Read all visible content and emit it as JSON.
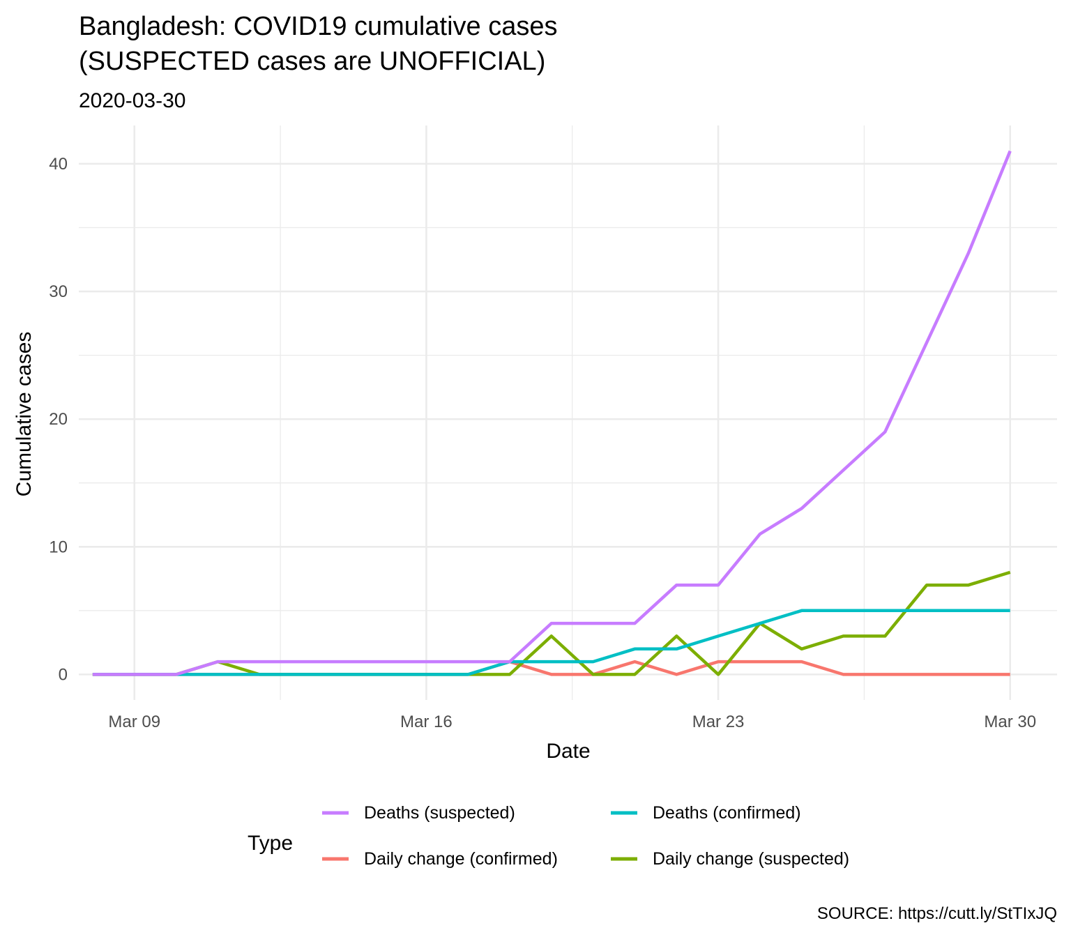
{
  "chart_data": {
    "type": "line",
    "title": "Bangladesh: COVID19 cumulative cases\n(SUSPECTED cases are UNOFFICIAL)",
    "title_lines": [
      "Bangladesh: COVID19 cumulative cases",
      "(SUSPECTED cases are UNOFFICIAL)"
    ],
    "subtitle": "2020-03-30",
    "xlabel": "Date",
    "ylabel": "Cumulative cases",
    "caption": "SOURCE: https://cutt.ly/StTIxJQ",
    "legend_title": "Type",
    "legend_position": "bottom",
    "grid": true,
    "xlim": [
      "2020-03-07T16:00",
      "2020-03-31T03:00"
    ],
    "ylim": [
      -2,
      43
    ],
    "x_ticks": [
      {
        "value": "2020-03-09",
        "label": "Mar 09"
      },
      {
        "value": "2020-03-16",
        "label": "Mar 16"
      },
      {
        "value": "2020-03-23",
        "label": "Mar 23"
      },
      {
        "value": "2020-03-30",
        "label": "Mar 30"
      }
    ],
    "x_minor_ticks": [
      "2020-03-12T12:00",
      "2020-03-19T12:00",
      "2020-03-26T12:00"
    ],
    "y_ticks": [
      0,
      10,
      20,
      30,
      40
    ],
    "y_minor_ticks": [
      5,
      15,
      25,
      35
    ],
    "x": [
      "2020-03-08",
      "2020-03-09",
      "2020-03-10",
      "2020-03-11",
      "2020-03-12",
      "2020-03-13",
      "2020-03-14",
      "2020-03-15",
      "2020-03-16",
      "2020-03-17",
      "2020-03-18",
      "2020-03-19",
      "2020-03-20",
      "2020-03-21",
      "2020-03-22",
      "2020-03-23",
      "2020-03-24",
      "2020-03-25",
      "2020-03-26",
      "2020-03-27",
      "2020-03-28",
      "2020-03-29",
      "2020-03-30"
    ],
    "series": [
      {
        "name": "Daily change (confirmed)",
        "color": "#F8766D",
        "values": [
          0,
          0,
          0,
          0,
          0,
          0,
          0,
          0,
          0,
          0,
          1,
          0,
          0,
          1,
          0,
          1,
          1,
          1,
          0,
          0,
          0,
          0,
          0
        ]
      },
      {
        "name": "Daily change (suspected)",
        "color": "#7CAE00",
        "values": [
          0,
          0,
          0,
          1,
          0,
          0,
          0,
          0,
          0,
          0,
          0,
          3,
          0,
          0,
          3,
          0,
          4,
          2,
          3,
          3,
          7,
          7,
          8
        ]
      },
      {
        "name": "Deaths (confirmed)",
        "color": "#00BFC4",
        "values": [
          0,
          0,
          0,
          0,
          0,
          0,
          0,
          0,
          0,
          0,
          1,
          1,
          1,
          2,
          2,
          3,
          4,
          5,
          5,
          5,
          5,
          5,
          5
        ]
      },
      {
        "name": "Deaths (suspected)",
        "color": "#C77CFF",
        "values": [
          0,
          0,
          0,
          1,
          1,
          1,
          1,
          1,
          1,
          1,
          1,
          4,
          4,
          4,
          7,
          7,
          11,
          13,
          16,
          19,
          26,
          33,
          41
        ]
      }
    ],
    "legend_order": [
      "Deaths (suspected)",
      "Deaths (confirmed)",
      "Daily change (confirmed)",
      "Daily change (suspected)"
    ]
  }
}
